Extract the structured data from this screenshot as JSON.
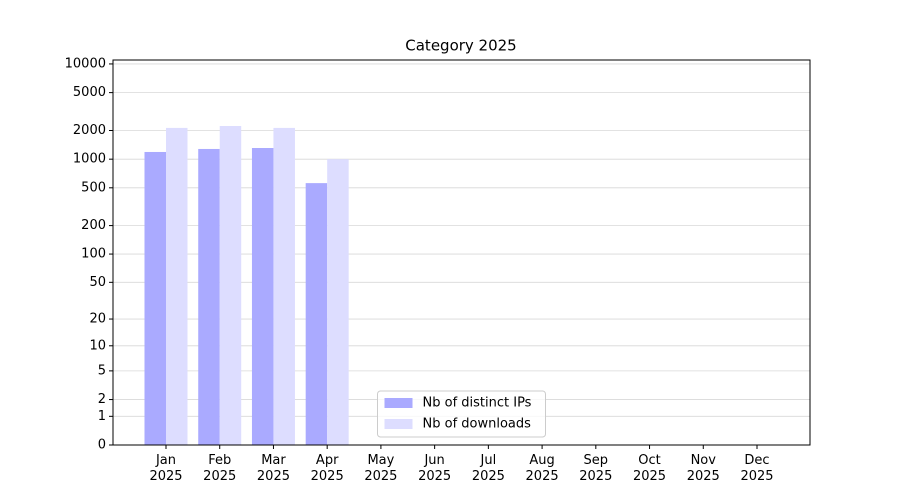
{
  "chart_data": {
    "type": "bar",
    "title": "Category 2025",
    "categories": [
      "Jan\n2025",
      "Feb\n2025",
      "Mar\n2025",
      "Apr\n2025",
      "May\n2025",
      "Jun\n2025",
      "Jul\n2025",
      "Aug\n2025",
      "Sep\n2025",
      "Oct\n2025",
      "Nov\n2025",
      "Dec\n2025"
    ],
    "series": [
      {
        "name": "Nb of distinct IPs",
        "color": "#aaaaff",
        "values": [
          1190,
          1280,
          1310,
          560,
          null,
          null,
          null,
          null,
          null,
          null,
          null,
          null
        ]
      },
      {
        "name": "Nb of downloads",
        "color": "#ddddff",
        "values": [
          2130,
          2230,
          2130,
          1000,
          null,
          null,
          null,
          null,
          null,
          null,
          null,
          null
        ]
      }
    ],
    "yscale": "symlog",
    "ylim": [
      0,
      11000
    ],
    "yticks": [
      0,
      1,
      2,
      5,
      10,
      20,
      50,
      100,
      200,
      500,
      1000,
      2000,
      5000,
      10000
    ],
    "grid": true,
    "legend": "lower center"
  }
}
